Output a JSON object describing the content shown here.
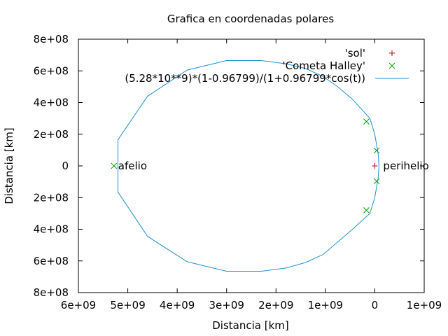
{
  "chart_data": {
    "type": "line",
    "title": "Grafica en coordenadas polares",
    "xlabel": "Distancia [km]",
    "ylabel": "Distancia [km]",
    "xlim": [
      6000000000.0,
      -1000000000.0
    ],
    "ylim": [
      -800000000.0,
      800000000.0
    ],
    "x_axis_reversed": true,
    "xticks": [
      {
        "value": 6000000000.0,
        "label": "6e+09"
      },
      {
        "value": 5000000000.0,
        "label": "5e+09"
      },
      {
        "value": 4000000000.0,
        "label": "4e+09"
      },
      {
        "value": 3000000000.0,
        "label": "3e+09"
      },
      {
        "value": 2000000000.0,
        "label": "2e+09"
      },
      {
        "value": 1000000000.0,
        "label": "1e+09"
      },
      {
        "value": 0,
        "label": "0"
      },
      {
        "value": -1000000000.0,
        "label": "1e+09"
      }
    ],
    "yticks": [
      {
        "value": 800000000.0,
        "label": "8e+08"
      },
      {
        "value": 600000000.0,
        "label": "6e+08"
      },
      {
        "value": 400000000.0,
        "label": "4e+08"
      },
      {
        "value": 200000000.0,
        "label": "2e+08"
      },
      {
        "value": 0,
        "label": "0"
      },
      {
        "value": -200000000.0,
        "label": "2e+08"
      },
      {
        "value": -400000000.0,
        "label": "4e+08"
      },
      {
        "value": -600000000.0,
        "label": "6e+08"
      },
      {
        "value": -800000000.0,
        "label": "8e+08"
      }
    ],
    "grid": false,
    "legend_position": "top-right",
    "series": [
      {
        "name": "'sol'",
        "marker": "plus",
        "color": "#cc0000",
        "points": [
          {
            "x": 0,
            "y": 0
          }
        ]
      },
      {
        "name": "'Cometa Halley'",
        "marker": "cross",
        "color": "#00a000",
        "points": [
          {
            "x": 5280000000.0,
            "y": 0
          },
          {
            "x": -37000000.0,
            "y": 97000000.0
          },
          {
            "x": -37000000.0,
            "y": -97000000.0
          },
          {
            "x": 170000000.0,
            "y": 280000000.0
          },
          {
            "x": 170000000.0,
            "y": -280000000.0
          }
        ]
      },
      {
        "name": "(5.28*10**9)*(1-0.96799)/(1+0.96799*cos(t))",
        "style": "line",
        "color": "#1e90d2",
        "points": [
          {
            "x": -85000000.0,
            "y": 0
          },
          {
            "x": -70000000.0,
            "y": 70000000.0
          },
          {
            "x": 0,
            "y": 200000000.0
          },
          {
            "x": 100000000.0,
            "y": 300000000.0
          },
          {
            "x": 450000000.0,
            "y": 420000000.0
          },
          {
            "x": 750000000.0,
            "y": 500000000.0
          },
          {
            "x": 1050000000.0,
            "y": 565000000.0
          },
          {
            "x": 1400000000.0,
            "y": 615000000.0
          },
          {
            "x": 1800000000.0,
            "y": 645000000.0
          },
          {
            "x": 2300000000.0,
            "y": 665000000.0
          },
          {
            "x": 3000000000.0,
            "y": 665000000.0
          },
          {
            "x": 3800000000.0,
            "y": 605000000.0
          },
          {
            "x": 4600000000.0,
            "y": 440000000.0
          },
          {
            "x": 5200000000.0,
            "y": 165000000.0
          },
          {
            "x": 5200000000.0,
            "y": -165000000.0
          },
          {
            "x": 4600000000.0,
            "y": -445000000.0
          },
          {
            "x": 3800000000.0,
            "y": -605000000.0
          },
          {
            "x": 3000000000.0,
            "y": -665000000.0
          },
          {
            "x": 2300000000.0,
            "y": -665000000.0
          },
          {
            "x": 1800000000.0,
            "y": -645000000.0
          },
          {
            "x": 1400000000.0,
            "y": -610000000.0
          },
          {
            "x": 1050000000.0,
            "y": -560000000.0
          },
          {
            "x": 750000000.0,
            "y": -480000000.0
          },
          {
            "x": 450000000.0,
            "y": -400000000.0
          },
          {
            "x": 100000000.0,
            "y": -300000000.0
          },
          {
            "x": 0,
            "y": -200000000.0
          },
          {
            "x": -70000000.0,
            "y": -70000000.0
          },
          {
            "x": -85000000.0,
            "y": 0
          }
        ]
      }
    ],
    "annotations": [
      {
        "text": "afelio",
        "x": 5280000000.0,
        "y": 0
      },
      {
        "text": "perihelio",
        "x": -85000000.0,
        "y": 0
      }
    ]
  }
}
